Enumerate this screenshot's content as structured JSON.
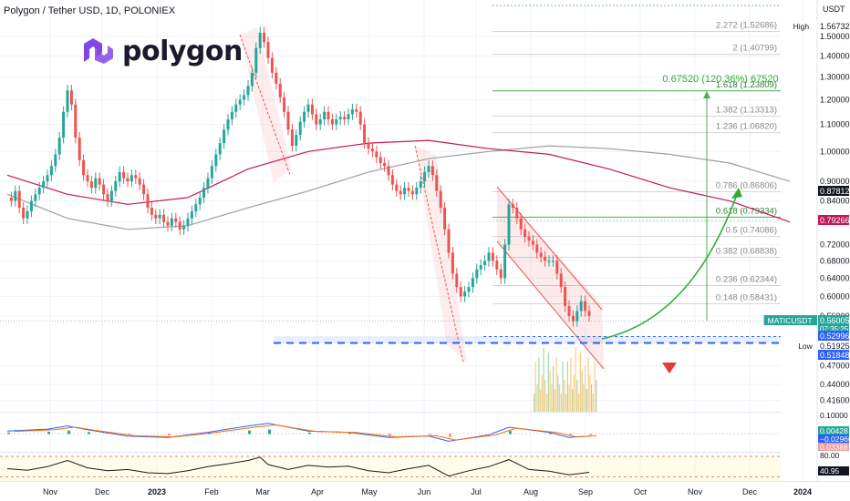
{
  "header": {
    "title": "Polygon / Tether USD, 1D, POLONIEX"
  },
  "logo": {
    "text": "polygon"
  },
  "colors": {
    "up": "#26a69a",
    "down": "#ef5350",
    "ma_long": "#9e9e9e",
    "ma_short": "#c2185b",
    "fib": "#4caf50",
    "arrow": "#2eae34",
    "level": "#2962ff"
  },
  "chart_data": {
    "type": "candlestick",
    "axis_unit": "USDT",
    "x_ticks": [
      "Nov",
      "Dec",
      "2023",
      "Feb",
      "Mar",
      "Apr",
      "May",
      "Jun",
      "Jul",
      "Aug",
      "Sep",
      "Oct",
      "Nov",
      "Dec",
      "2024"
    ],
    "y_ticks": [
      1.5,
      1.4,
      1.3,
      1.2,
      1.1,
      1.0,
      0.9,
      0.84,
      0.78,
      0.72,
      0.68,
      0.64,
      0.6,
      0.56,
      0.47,
      0.44,
      0.416
    ],
    "price_labels": [
      {
        "tag": "High",
        "value": "1.56732",
        "style": "light"
      },
      {
        "tag": "",
        "value": "0.87812",
        "style": "dark"
      },
      {
        "tag": "",
        "value": "0.79266",
        "style": "magenta"
      },
      {
        "tag": "MATICUSDT",
        "value": "0.56005",
        "sub": "07:35:25",
        "style": "green"
      },
      {
        "tag": "",
        "value": "0.52996",
        "style": "blue"
      },
      {
        "tag": "Low",
        "value": "0.51925",
        "style": "light"
      },
      {
        "tag": "",
        "value": "0.51848",
        "style": "blue"
      }
    ],
    "fib_levels": [
      {
        "label": "2.272 (1.52686)",
        "value": 1.52686
      },
      {
        "label": "2 (1.40799)",
        "value": 1.40799
      },
      {
        "label": "1.618 (1.23809)",
        "value": 1.23809,
        "green": true
      },
      {
        "label": "1.382 (1.13313)",
        "value": 1.13313
      },
      {
        "label": "1.236 (1.06820)",
        "value": 1.0682
      },
      {
        "label": "0.786 (0.86806)",
        "value": 0.86806
      },
      {
        "label": "0.618 (0.79334)",
        "value": 0.79334,
        "green": true
      },
      {
        "label": "0.5 (0.74086)",
        "value": 0.74086
      },
      {
        "label": "0.382 (0.68838)",
        "value": 0.68838
      },
      {
        "label": "0.236 (0.62344)",
        "value": 0.62344
      },
      {
        "label": "0.148 (0.58431)",
        "value": 0.58431
      }
    ],
    "measure_label": "0.67520 (120.36%) 67520",
    "macd_labels": [
      "0.10000",
      "0.00428",
      "−0.02960",
      "0.03388"
    ],
    "rsi_labels": [
      "80.00",
      "40.95"
    ],
    "ma_long": [
      [
        0,
        0.86
      ],
      [
        30,
        0.79
      ],
      [
        60,
        0.76
      ],
      [
        90,
        0.77
      ],
      [
        120,
        0.82
      ],
      [
        150,
        0.87
      ],
      [
        180,
        0.93
      ],
      [
        210,
        0.975
      ],
      [
        240,
        1.0
      ],
      [
        270,
        1.02
      ],
      [
        300,
        1.01
      ],
      [
        330,
        0.99
      ],
      [
        360,
        0.96
      ],
      [
        390,
        0.9
      ]
    ],
    "ma_short": [
      [
        0,
        0.92
      ],
      [
        30,
        0.86
      ],
      [
        60,
        0.83
      ],
      [
        90,
        0.85
      ],
      [
        120,
        0.94
      ],
      [
        150,
        1.0
      ],
      [
        180,
        1.03
      ],
      [
        210,
        1.04
      ],
      [
        240,
        1.01
      ],
      [
        270,
        0.99
      ],
      [
        300,
        0.94
      ],
      [
        330,
        0.88
      ],
      [
        360,
        0.84
      ],
      [
        390,
        0.78
      ]
    ],
    "candles": [
      [
        0,
        0.85
      ],
      [
        2,
        0.84
      ],
      [
        4,
        0.87
      ],
      [
        6,
        0.82
      ],
      [
        8,
        0.79
      ],
      [
        10,
        0.81
      ],
      [
        12,
        0.84
      ],
      [
        14,
        0.86
      ],
      [
        16,
        0.88
      ],
      [
        18,
        0.9
      ],
      [
        20,
        0.92
      ],
      [
        22,
        0.95
      ],
      [
        24,
        0.99
      ],
      [
        26,
        1.05
      ],
      [
        28,
        1.15
      ],
      [
        30,
        1.24
      ],
      [
        32,
        1.18
      ],
      [
        34,
        1.05
      ],
      [
        36,
        0.97
      ],
      [
        38,
        0.92
      ],
      [
        40,
        0.9
      ],
      [
        42,
        0.88
      ],
      [
        44,
        0.91
      ],
      [
        46,
        0.89
      ],
      [
        48,
        0.86
      ],
      [
        50,
        0.84
      ],
      [
        52,
        0.87
      ],
      [
        54,
        0.9
      ],
      [
        56,
        0.93
      ],
      [
        58,
        0.91
      ],
      [
        60,
        0.9
      ],
      [
        62,
        0.92
      ],
      [
        64,
        0.91
      ],
      [
        66,
        0.89
      ],
      [
        68,
        0.86
      ],
      [
        70,
        0.82
      ],
      [
        72,
        0.8
      ],
      [
        74,
        0.79
      ],
      [
        76,
        0.8
      ],
      [
        78,
        0.78
      ],
      [
        80,
        0.77
      ],
      [
        82,
        0.79
      ],
      [
        84,
        0.78
      ],
      [
        86,
        0.76
      ],
      [
        88,
        0.77
      ],
      [
        90,
        0.79
      ],
      [
        92,
        0.81
      ],
      [
        94,
        0.83
      ],
      [
        96,
        0.85
      ],
      [
        98,
        0.88
      ],
      [
        100,
        0.91
      ],
      [
        102,
        0.95
      ],
      [
        104,
        0.99
      ],
      [
        106,
        1.03
      ],
      [
        108,
        1.08
      ],
      [
        110,
        1.12
      ],
      [
        112,
        1.15
      ],
      [
        114,
        1.18
      ],
      [
        116,
        1.2
      ],
      [
        118,
        1.22
      ],
      [
        120,
        1.26
      ],
      [
        122,
        1.32
      ],
      [
        124,
        1.44
      ],
      [
        126,
        1.52
      ],
      [
        128,
        1.47
      ],
      [
        130,
        1.39
      ],
      [
        132,
        1.32
      ],
      [
        134,
        1.27
      ],
      [
        136,
        1.21
      ],
      [
        138,
        1.15
      ],
      [
        140,
        1.08
      ],
      [
        142,
        1.02
      ],
      [
        144,
        1.06
      ],
      [
        146,
        1.11
      ],
      [
        148,
        1.15
      ],
      [
        150,
        1.18
      ],
      [
        152,
        1.14
      ],
      [
        154,
        1.1
      ],
      [
        156,
        1.12
      ],
      [
        158,
        1.15
      ],
      [
        160,
        1.12
      ],
      [
        162,
        1.1
      ],
      [
        164,
        1.12
      ],
      [
        166,
        1.13
      ],
      [
        168,
        1.12
      ],
      [
        170,
        1.14
      ],
      [
        172,
        1.16
      ],
      [
        174,
        1.15
      ],
      [
        176,
        1.1
      ],
      [
        178,
        1.03
      ],
      [
        180,
        1.01
      ],
      [
        182,
        1.0
      ],
      [
        184,
        0.98
      ],
      [
        186,
        0.96
      ],
      [
        188,
        0.95
      ],
      [
        190,
        0.92
      ],
      [
        192,
        0.89
      ],
      [
        194,
        0.87
      ],
      [
        196,
        0.86
      ],
      [
        198,
        0.88
      ],
      [
        200,
        0.87
      ],
      [
        202,
        0.86
      ],
      [
        204,
        0.88
      ],
      [
        206,
        0.9
      ],
      [
        208,
        0.93
      ],
      [
        210,
        0.95
      ],
      [
        212,
        0.92
      ],
      [
        214,
        0.87
      ],
      [
        216,
        0.82
      ],
      [
        218,
        0.76
      ],
      [
        220,
        0.7
      ],
      [
        222,
        0.65
      ],
      [
        224,
        0.62
      ],
      [
        226,
        0.6
      ],
      [
        228,
        0.61
      ],
      [
        230,
        0.62
      ],
      [
        232,
        0.64
      ],
      [
        234,
        0.66
      ],
      [
        236,
        0.67
      ],
      [
        238,
        0.68
      ],
      [
        240,
        0.7
      ],
      [
        242,
        0.68
      ],
      [
        244,
        0.66
      ],
      [
        246,
        0.64
      ],
      [
        248,
        0.72
      ],
      [
        250,
        0.83
      ],
      [
        252,
        0.82
      ],
      [
        254,
        0.79
      ],
      [
        256,
        0.76
      ],
      [
        258,
        0.74
      ],
      [
        260,
        0.73
      ],
      [
        262,
        0.72
      ],
      [
        264,
        0.7
      ],
      [
        266,
        0.69
      ],
      [
        268,
        0.68
      ],
      [
        270,
        0.68
      ],
      [
        272,
        0.68
      ],
      [
        274,
        0.65
      ],
      [
        276,
        0.62
      ],
      [
        278,
        0.58
      ],
      [
        280,
        0.56
      ],
      [
        282,
        0.55
      ],
      [
        284,
        0.57
      ],
      [
        286,
        0.59
      ],
      [
        288,
        0.57
      ],
      [
        290,
        0.56
      ]
    ],
    "macd": [
      [
        0,
        0.2
      ],
      [
        20,
        0.35
      ],
      [
        30,
        0.6
      ],
      [
        40,
        0.3
      ],
      [
        60,
        -0.2
      ],
      [
        80,
        -0.3
      ],
      [
        100,
        0.1
      ],
      [
        120,
        0.6
      ],
      [
        130,
        0.8
      ],
      [
        150,
        0.2
      ],
      [
        170,
        0.1
      ],
      [
        190,
        -0.3
      ],
      [
        210,
        -0.2
      ],
      [
        220,
        -0.6
      ],
      [
        240,
        -0.1
      ],
      [
        250,
        0.5
      ],
      [
        270,
        0.1
      ],
      [
        280,
        -0.3
      ],
      [
        290,
        -0.2
      ]
    ],
    "rsi": [
      [
        0,
        50
      ],
      [
        10,
        46
      ],
      [
        20,
        55
      ],
      [
        30,
        70
      ],
      [
        40,
        52
      ],
      [
        50,
        45
      ],
      [
        60,
        48
      ],
      [
        70,
        40
      ],
      [
        80,
        38
      ],
      [
        90,
        45
      ],
      [
        100,
        55
      ],
      [
        110,
        62
      ],
      [
        120,
        70
      ],
      [
        126,
        78
      ],
      [
        130,
        60
      ],
      [
        140,
        48
      ],
      [
        150,
        58
      ],
      [
        160,
        54
      ],
      [
        170,
        56
      ],
      [
        180,
        45
      ],
      [
        190,
        40
      ],
      [
        200,
        50
      ],
      [
        210,
        58
      ],
      [
        220,
        32
      ],
      [
        230,
        45
      ],
      [
        240,
        55
      ],
      [
        250,
        72
      ],
      [
        260,
        48
      ],
      [
        270,
        44
      ],
      [
        280,
        35
      ],
      [
        290,
        41
      ]
    ]
  }
}
